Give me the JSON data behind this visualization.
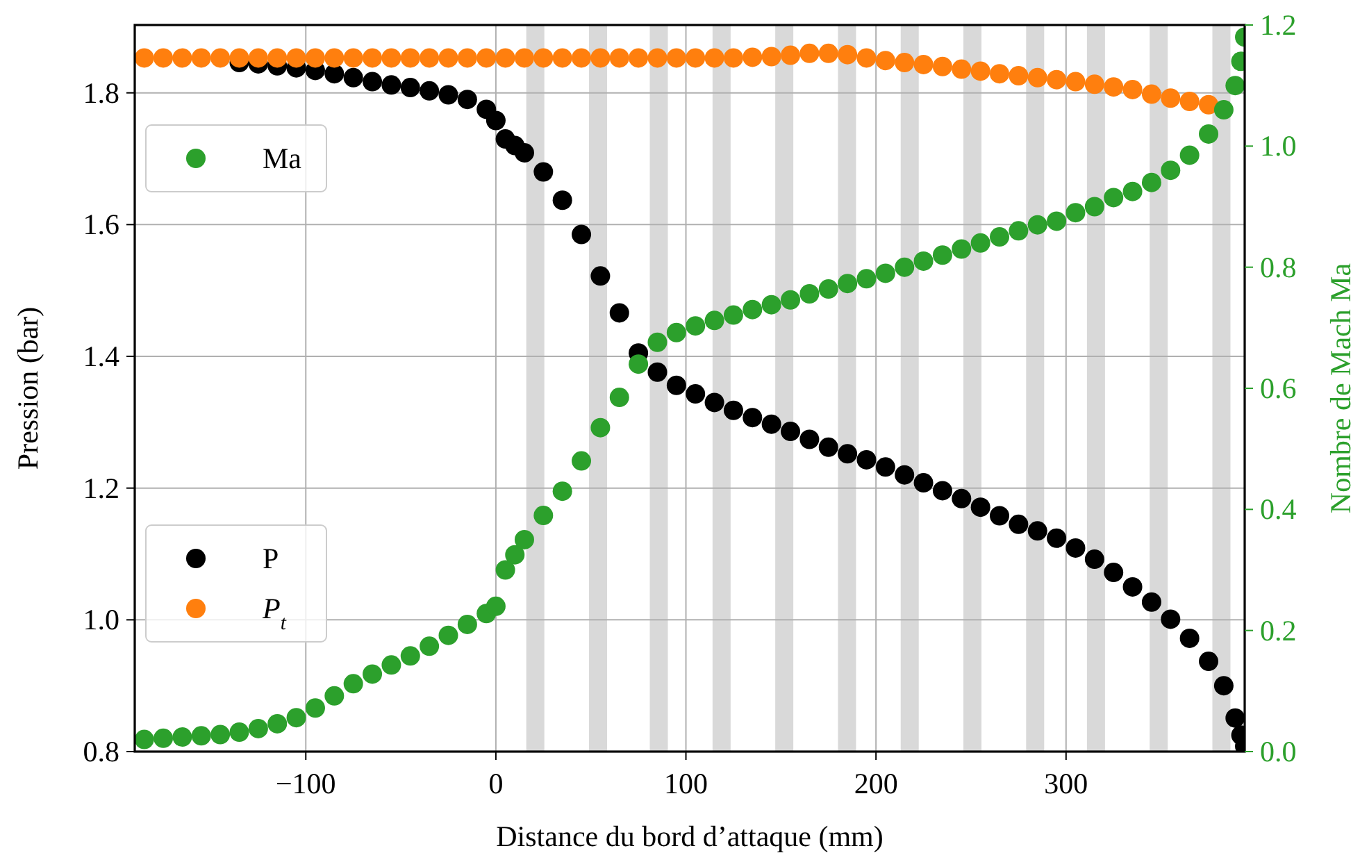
{
  "chart_data": {
    "type": "scatter",
    "xlabel": "Distance du bord d’attaque (mm)",
    "ylabel": "Pression (bar)",
    "y2label": "Nombre de Mach Ma",
    "xlim": [
      -190,
      394
    ],
    "ylim": [
      0.8,
      1.903
    ],
    "y2lim": [
      0,
      1.2
    ],
    "xticks": [
      {
        "value": -100,
        "label": "−100"
      },
      0,
      100,
      200,
      300
    ],
    "yticks": [
      {
        "value": 0.8,
        "label": "0.8"
      },
      {
        "value": 1.0,
        "label": "1.0"
      },
      1.2,
      1.4,
      1.6,
      1.8
    ],
    "y2ticks": [
      {
        "value": 0,
        "label": "0.0"
      },
      0.2,
      0.4,
      0.6,
      0.8,
      {
        "value": 1.0,
        "label": "1.0"
      },
      1.2
    ],
    "grid": true,
    "legend": "left",
    "marker": "circle",
    "bands": [
      {
        "axis": "x",
        "from": 16,
        "to": 25.5,
        "color": "#d9d9d9"
      },
      {
        "axis": "x",
        "from": 49,
        "to": 58.5,
        "color": "#d9d9d9"
      },
      {
        "axis": "x",
        "from": 81,
        "to": 90.5,
        "color": "#d9d9d9"
      },
      {
        "axis": "x",
        "from": 114,
        "to": 123.5,
        "color": "#d9d9d9"
      },
      {
        "axis": "x",
        "from": 147,
        "to": 156.5,
        "color": "#d9d9d9"
      },
      {
        "axis": "x",
        "from": 180,
        "to": 189.5,
        "color": "#d9d9d9"
      },
      {
        "axis": "x",
        "from": 213,
        "to": 222.5,
        "color": "#d9d9d9"
      },
      {
        "axis": "x",
        "from": 246,
        "to": 255.5,
        "color": "#d9d9d9"
      },
      {
        "axis": "x",
        "from": 279,
        "to": 288.5,
        "color": "#d9d9d9"
      },
      {
        "axis": "x",
        "from": 311,
        "to": 320.5,
        "color": "#d9d9d9"
      },
      {
        "axis": "x",
        "from": 344,
        "to": 353.5,
        "color": "#d9d9d9"
      },
      {
        "axis": "x",
        "from": 377,
        "to": 386.5,
        "color": "#d9d9d9"
      }
    ],
    "series": [
      {
        "name": "P",
        "color": "#000000",
        "x": [
          -135,
          -125,
          -115,
          -105,
          -95,
          -85,
          -75,
          -65,
          -55,
          -45,
          -35,
          -25,
          -15,
          -5,
          0,
          5,
          10,
          15,
          25,
          35,
          45,
          55,
          65,
          75,
          85,
          95,
          105,
          115,
          125,
          135,
          145,
          155,
          165,
          175,
          185,
          195,
          205,
          215,
          225,
          235,
          245,
          255,
          265,
          275,
          285,
          295,
          305,
          315,
          325,
          335,
          345,
          355,
          365,
          375,
          383,
          389,
          392,
          394
        ],
        "values": [
          1.846,
          1.844,
          1.841,
          1.838,
          1.834,
          1.829,
          1.823,
          1.817,
          1.812,
          1.808,
          1.803,
          1.797,
          1.79,
          1.775,
          1.758,
          1.73,
          1.72,
          1.709,
          1.68,
          1.637,
          1.585,
          1.522,
          1.466,
          1.405,
          1.376,
          1.356,
          1.343,
          1.33,
          1.318,
          1.307,
          1.297,
          1.286,
          1.274,
          1.262,
          1.252,
          1.243,
          1.232,
          1.22,
          1.208,
          1.196,
          1.184,
          1.171,
          1.158,
          1.145,
          1.135,
          1.124,
          1.109,
          1.092,
          1.072,
          1.05,
          1.027,
          1.001,
          0.972,
          0.937,
          0.9,
          0.851,
          0.825,
          0.808
        ]
      },
      {
        "name": "P$_{t}$",
        "color": "#ff7f0e",
        "x": [
          -185,
          -175,
          -165,
          -155,
          -145,
          -135,
          -125,
          -115,
          -105,
          -95,
          -85,
          -75,
          -65,
          -55,
          -45,
          -35,
          -25,
          -15,
          -5,
          5,
          15,
          25,
          35,
          45,
          55,
          65,
          75,
          85,
          95,
          105,
          115,
          125,
          135,
          145,
          155,
          165,
          175,
          185,
          195,
          205,
          215,
          225,
          235,
          245,
          255,
          265,
          275,
          285,
          295,
          305,
          315,
          325,
          335,
          345,
          355,
          365,
          375
        ],
        "values": [
          1.853,
          1.853,
          1.853,
          1.853,
          1.853,
          1.853,
          1.853,
          1.853,
          1.853,
          1.853,
          1.853,
          1.853,
          1.853,
          1.853,
          1.853,
          1.853,
          1.853,
          1.853,
          1.853,
          1.853,
          1.853,
          1.853,
          1.853,
          1.853,
          1.853,
          1.853,
          1.853,
          1.853,
          1.853,
          1.853,
          1.853,
          1.853,
          1.854,
          1.855,
          1.857,
          1.86,
          1.86,
          1.858,
          1.853,
          1.849,
          1.846,
          1.843,
          1.84,
          1.836,
          1.833,
          1.829,
          1.826,
          1.823,
          1.82,
          1.817,
          1.813,
          1.809,
          1.805,
          1.798,
          1.792,
          1.787,
          1.782
        ]
      },
      {
        "name": "Ma",
        "color": "#2ca02c",
        "axis": "y2",
        "x": [
          -185,
          -175,
          -165,
          -155,
          -145,
          -135,
          -125,
          -115,
          -105,
          -95,
          -85,
          -75,
          -65,
          -55,
          -45,
          -35,
          -25,
          -15,
          -5,
          0,
          5,
          10,
          15,
          25,
          35,
          45,
          55,
          65,
          75,
          85,
          95,
          105,
          115,
          125,
          135,
          145,
          155,
          165,
          175,
          185,
          195,
          205,
          215,
          225,
          235,
          245,
          255,
          265,
          275,
          285,
          295,
          305,
          315,
          325,
          335,
          345,
          355,
          365,
          375,
          383,
          389,
          392,
          394
        ],
        "values": [
          0.02,
          0.022,
          0.024,
          0.026,
          0.028,
          0.032,
          0.038,
          0.046,
          0.056,
          0.072,
          0.092,
          0.112,
          0.128,
          0.143,
          0.158,
          0.174,
          0.192,
          0.21,
          0.228,
          0.24,
          0.3,
          0.325,
          0.35,
          0.39,
          0.43,
          0.48,
          0.535,
          0.585,
          0.64,
          0.676,
          0.692,
          0.703,
          0.712,
          0.721,
          0.73,
          0.738,
          0.746,
          0.756,
          0.764,
          0.773,
          0.781,
          0.79,
          0.8,
          0.81,
          0.82,
          0.83,
          0.84,
          0.85,
          0.86,
          0.87,
          0.876,
          0.89,
          0.9,
          0.915,
          0.925,
          0.94,
          0.96,
          0.985,
          1.02,
          1.06,
          1.1,
          1.14,
          1.18
        ]
      }
    ]
  }
}
